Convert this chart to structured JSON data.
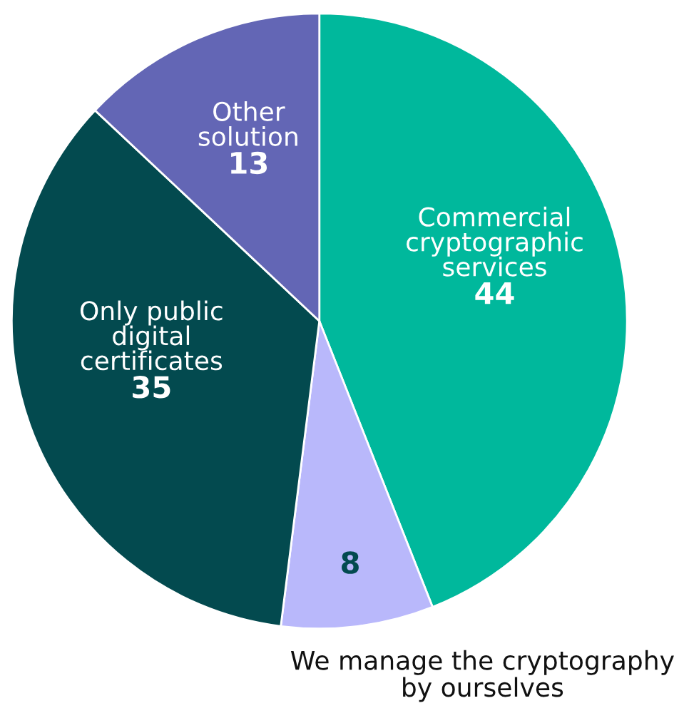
{
  "chart_data": {
    "type": "pie",
    "categories": [
      "Commercial cryptographic services",
      "We manage the cryptography by ourselves",
      "Only public digital certificates",
      "Other solution"
    ],
    "values": [
      44,
      8,
      35,
      13
    ],
    "colors": [
      "#00b89c",
      "#b9b8fb",
      "#034a4f",
      "#6366b5"
    ],
    "data_labels": true
  }
}
